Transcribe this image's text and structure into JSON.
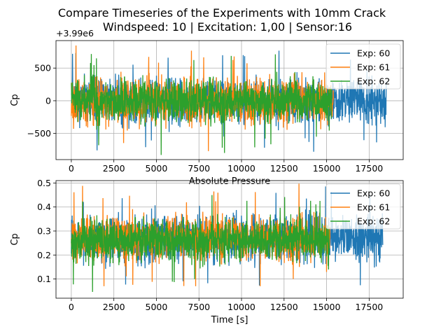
{
  "figure": {
    "title_line1": "Compare Timeseries of the Experiments with 10mm Crack",
    "title_line2": "Windspeed: 10 | Excitation: 1,00 | Sensor:16"
  },
  "colors": {
    "exp60": "#1f77b4",
    "exp61": "#ff7f0e",
    "exp62": "#2ca02c",
    "grid": "#b0b0b0"
  },
  "chart_data": [
    {
      "type": "line",
      "title": "",
      "xlabel": "Absolute Pressure",
      "ylabel": "Cp",
      "offset_text": "+3.99e6",
      "xlim": [
        -900,
        19500
      ],
      "ylim": [
        -900,
        920
      ],
      "x_ticks": [
        0,
        2500,
        5000,
        7500,
        10000,
        12500,
        15000,
        17500
      ],
      "x_tick_labels": [
        "0",
        "2500",
        "5000",
        "7500",
        "10000",
        "12500",
        "15000",
        "17500"
      ],
      "y_ticks": [
        -500,
        0,
        500
      ],
      "y_tick_labels": [
        "−500",
        "0",
        "500"
      ],
      "grid": true,
      "legend_position": "top-right",
      "series": [
        {
          "name": "Exp: 60",
          "x_range": [
            0,
            18500
          ],
          "center": 0,
          "spread": 260,
          "max": 860,
          "min": -780
        },
        {
          "name": "Exp: 61",
          "x_range": [
            0,
            15400
          ],
          "center": 0,
          "spread": 260,
          "max": 870,
          "min": -770
        },
        {
          "name": "Exp: 62",
          "x_range": [
            0,
            15300
          ],
          "center": 0,
          "spread": 240,
          "max": 720,
          "min": -830
        }
      ]
    },
    {
      "type": "line",
      "title": "",
      "xlabel": "Time [s]",
      "ylabel": "Cp",
      "xlim": [
        -900,
        19500
      ],
      "ylim": [
        0.02,
        0.51
      ],
      "x_ticks": [
        0,
        2500,
        5000,
        7500,
        10000,
        12500,
        15000,
        17500
      ],
      "x_tick_labels": [
        "0",
        "2500",
        "5000",
        "7500",
        "10000",
        "12500",
        "15000",
        "17500"
      ],
      "y_ticks": [
        0.1,
        0.2,
        0.3,
        0.4,
        0.5
      ],
      "y_tick_labels": [
        "0.1",
        "0.2",
        "0.3",
        "0.4",
        "0.5"
      ],
      "grid": true,
      "legend_position": "top-right",
      "series": [
        {
          "name": "Exp: 60",
          "x_range": [
            0,
            18300
          ],
          "center": 0.27,
          "spread": 0.07,
          "max": 0.49,
          "min": 0.06
        },
        {
          "name": "Exp: 61",
          "x_range": [
            0,
            15200
          ],
          "center": 0.27,
          "spread": 0.07,
          "max": 0.5,
          "min": 0.07
        },
        {
          "name": "Exp: 62",
          "x_range": [
            0,
            15150
          ],
          "center": 0.26,
          "spread": 0.065,
          "max": 0.45,
          "min": 0.03
        }
      ]
    }
  ]
}
